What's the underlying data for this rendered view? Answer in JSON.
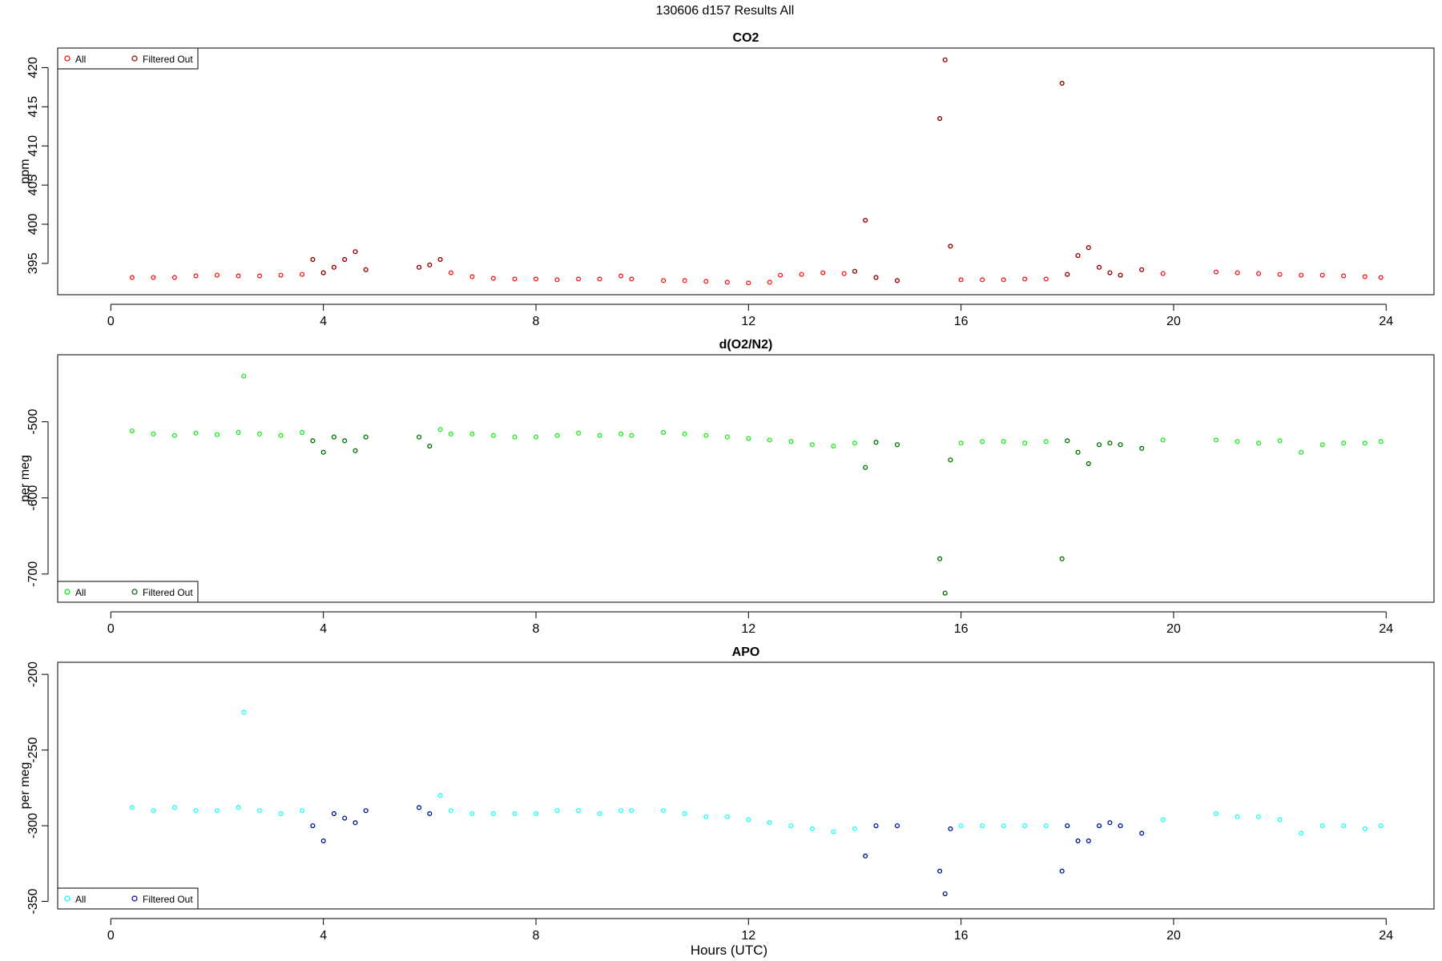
{
  "figure": {
    "title": "130606   d157   Results All",
    "xlabel": "Hours (UTC)"
  },
  "chart_data": [
    {
      "type": "scatter",
      "title": "CO2",
      "ylabel": "ppm",
      "xlim": [
        -1.0,
        24.9
      ],
      "ylim": [
        391.0,
        422.5
      ],
      "xticks": [
        0,
        4,
        8,
        12,
        16,
        20,
        24
      ],
      "yticks": [
        395,
        400,
        405,
        410,
        415,
        420
      ],
      "grid": false,
      "legend": {
        "position": "top-left",
        "entries": [
          "All",
          "Filtered Out"
        ]
      },
      "colors": {
        "all": "#ff0000",
        "filtered": "#8b0000"
      },
      "x": [
        0.4,
        0.8,
        1.2,
        1.6,
        2.0,
        2.4,
        2.8,
        3.2,
        3.6,
        3.8,
        4.0,
        4.2,
        4.4,
        4.6,
        4.8,
        5.8,
        6.0,
        6.2,
        6.4,
        6.8,
        7.2,
        7.6,
        8.0,
        8.4,
        8.8,
        9.2,
        9.6,
        9.8,
        10.4,
        10.8,
        11.2,
        11.6,
        12.0,
        12.4,
        12.6,
        13.0,
        13.4,
        13.8,
        14.0,
        14.2,
        14.4,
        14.8,
        15.6,
        15.7,
        15.8,
        16.0,
        16.4,
        16.8,
        17.2,
        17.6,
        17.9,
        18.0,
        18.2,
        18.4,
        18.6,
        18.8,
        19.0,
        19.4,
        19.8,
        20.8,
        21.2,
        21.6,
        22.0,
        22.4,
        22.8,
        23.2,
        23.6,
        23.9
      ],
      "series": [
        {
          "name": "All",
          "values": [
            393.2,
            393.2,
            393.2,
            393.4,
            393.5,
            393.4,
            393.4,
            393.5,
            393.6,
            395.5,
            393.8,
            394.5,
            395.5,
            396.5,
            394.2,
            394.5,
            394.8,
            395.5,
            393.8,
            393.3,
            393.1,
            393.0,
            393.0,
            392.9,
            393.0,
            393.0,
            393.4,
            393.0,
            392.8,
            392.8,
            392.7,
            392.6,
            392.5,
            392.6,
            393.5,
            393.6,
            393.8,
            393.7,
            394.0,
            400.5,
            393.2,
            392.8,
            413.5,
            421.0,
            397.2,
            392.9,
            392.9,
            392.9,
            393.0,
            393.0,
            418.0,
            393.6,
            396.0,
            397.0,
            394.5,
            393.8,
            393.5,
            394.2,
            393.7,
            393.9,
            393.8,
            393.7,
            393.6,
            393.5,
            393.5,
            393.4,
            393.3,
            393.2
          ]
        },
        {
          "name": "Filtered Out",
          "values": [
            395.5,
            393.8,
            394.5,
            395.5,
            396.5,
            394.2,
            394.5,
            394.8,
            395.5,
            394.0,
            400.5,
            393.2,
            392.8,
            413.5,
            421.0,
            397.2,
            418.0,
            393.6,
            396.0,
            397.0,
            394.5,
            393.8,
            393.5,
            394.2
          ]
        }
      ]
    },
    {
      "type": "scatter",
      "title": "d(O2/N2)",
      "ylabel": "per meg",
      "xlim": [
        -1.0,
        24.9
      ],
      "ylim": [
        -737,
        -412
      ],
      "xticks": [
        0,
        4,
        8,
        12,
        16,
        20,
        24
      ],
      "yticks": [
        -700,
        -600,
        -500
      ],
      "grid": false,
      "legend": {
        "position": "bottom-left",
        "entries": [
          "All",
          "Filtered Out"
        ]
      },
      "colors": {
        "all": "#00ee00",
        "filtered": "#006400"
      },
      "x": [
        0.4,
        0.8,
        1.2,
        1.6,
        2.0,
        2.4,
        2.5,
        2.8,
        3.2,
        3.6,
        3.8,
        4.0,
        4.2,
        4.4,
        4.6,
        4.8,
        5.8,
        6.0,
        6.2,
        6.4,
        6.8,
        7.2,
        7.6,
        8.0,
        8.4,
        8.8,
        9.2,
        9.6,
        9.8,
        10.4,
        10.8,
        11.2,
        11.6,
        12.0,
        12.4,
        12.8,
        13.2,
        13.6,
        14.0,
        14.2,
        14.4,
        14.8,
        15.6,
        15.7,
        15.8,
        16.0,
        16.4,
        16.8,
        17.2,
        17.6,
        17.9,
        18.0,
        18.2,
        18.4,
        18.6,
        18.8,
        19.0,
        19.4,
        19.8,
        20.8,
        21.2,
        21.6,
        22.0,
        22.4,
        22.8,
        23.2,
        23.6,
        23.9
      ],
      "series": [
        {
          "name": "All",
          "values": [
            -512,
            -516,
            -518,
            -515,
            -517,
            -514,
            -440,
            -516,
            -518,
            -514,
            -525,
            -540,
            -520,
            -525,
            -538,
            -520,
            -520,
            -532,
            -510,
            -516,
            -516,
            -518,
            -520,
            -520,
            -518,
            -515,
            -518,
            -516,
            -518,
            -514,
            -516,
            -518,
            -520,
            -522,
            -524,
            -526,
            -530,
            -532,
            -528,
            -560,
            -527,
            -530,
            -680,
            -725,
            -550,
            -528,
            -526,
            -526,
            -528,
            -526,
            -680,
            -525,
            -540,
            -555,
            -530,
            -528,
            -530,
            -535,
            -524,
            -524,
            -526,
            -528,
            -525,
            -540,
            -530,
            -528,
            -528,
            -526
          ]
        },
        {
          "name": "Filtered Out",
          "values": [
            -525,
            -540,
            -520,
            -525,
            -538,
            -520,
            -520,
            -532,
            -560,
            -527,
            -530,
            -680,
            -725,
            -550,
            -680,
            -525,
            -540,
            -555,
            -530,
            -528,
            -530,
            -535
          ]
        }
      ]
    },
    {
      "type": "scatter",
      "title": "APO",
      "ylabel": "per meg",
      "xlim": [
        -1.0,
        24.9
      ],
      "ylim": [
        -355,
        -192
      ],
      "xticks": [
        0,
        4,
        8,
        12,
        16,
        20,
        24
      ],
      "yticks": [
        -350,
        -300,
        -250,
        -200
      ],
      "grid": false,
      "legend": {
        "position": "bottom-left",
        "entries": [
          "All",
          "Filtered Out"
        ]
      },
      "colors": {
        "all": "#00ffff",
        "filtered": "#00008b"
      },
      "x": [
        0.4,
        0.8,
        1.2,
        1.6,
        2.0,
        2.4,
        2.5,
        2.8,
        3.2,
        3.6,
        3.8,
        4.0,
        4.2,
        4.4,
        4.6,
        4.8,
        5.8,
        6.0,
        6.2,
        6.4,
        6.8,
        7.2,
        7.6,
        8.0,
        8.4,
        8.8,
        9.2,
        9.6,
        9.8,
        10.4,
        10.8,
        11.2,
        11.6,
        12.0,
        12.4,
        12.8,
        13.2,
        13.6,
        14.0,
        14.2,
        14.4,
        14.8,
        15.6,
        15.7,
        15.8,
        16.0,
        16.4,
        16.8,
        17.2,
        17.6,
        17.9,
        18.0,
        18.2,
        18.4,
        18.6,
        18.8,
        19.0,
        19.4,
        19.8,
        20.8,
        21.2,
        21.6,
        22.0,
        22.4,
        22.8,
        23.2,
        23.6,
        23.9
      ],
      "series": [
        {
          "name": "All",
          "values": [
            -288,
            -290,
            -288,
            -290,
            -290,
            -288,
            -225,
            -290,
            -292,
            -290,
            -300,
            -310,
            -292,
            -295,
            -298,
            -290,
            -288,
            -292,
            -280,
            -290,
            -292,
            -292,
            -292,
            -292,
            -290,
            -290,
            -292,
            -290,
            -290,
            -290,
            -292,
            -294,
            -294,
            -296,
            -298,
            -300,
            -302,
            -304,
            -302,
            -320,
            -300,
            -300,
            -330,
            -345,
            -302,
            -300,
            -300,
            -300,
            -300,
            -300,
            -330,
            -300,
            -310,
            -310,
            -300,
            -298,
            -300,
            -305,
            -296,
            -292,
            -294,
            -294,
            -296,
            -305,
            -300,
            -300,
            -302,
            -300
          ]
        },
        {
          "name": "Filtered Out",
          "values": [
            -300,
            -310,
            -292,
            -295,
            -298,
            -290,
            -288,
            -292,
            -320,
            -300,
            -300,
            -330,
            -345,
            -302,
            -330,
            -300,
            -310,
            -310,
            -300,
            -298,
            -300,
            -305
          ]
        }
      ]
    }
  ]
}
